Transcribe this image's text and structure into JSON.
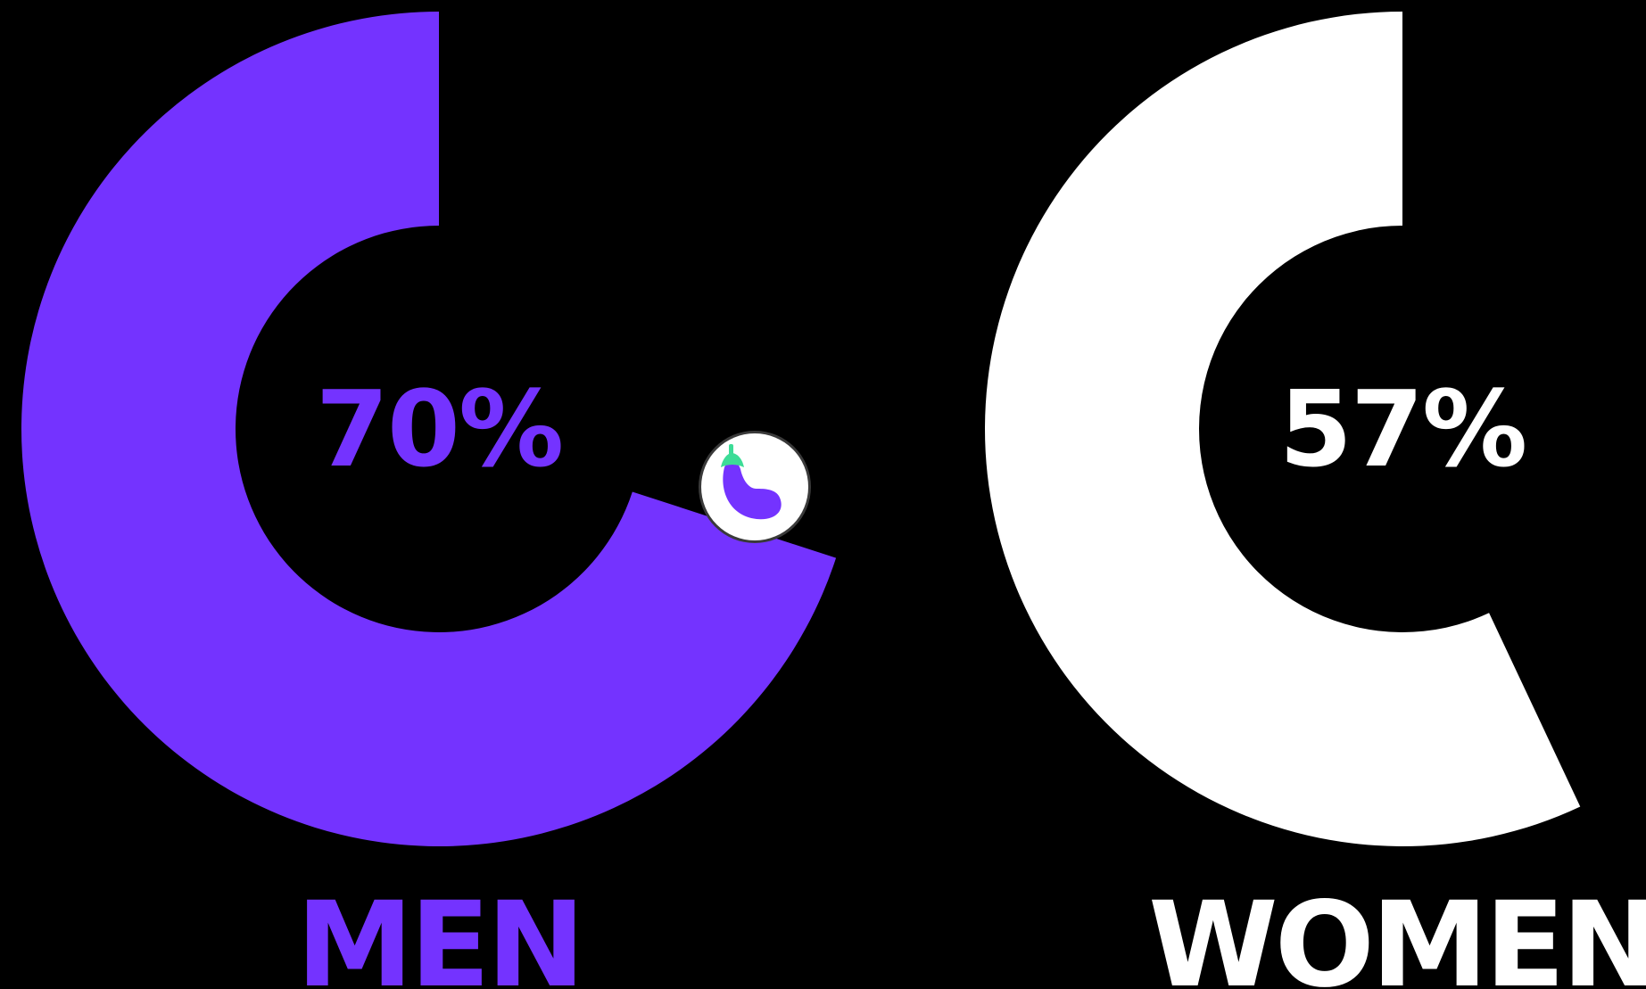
{
  "chart_data": [
    {
      "type": "pie",
      "category": "MEN",
      "value": 70,
      "value_label": "70%",
      "color": "#7433FF",
      "center_text_color": "#7433FF"
    },
    {
      "type": "pie",
      "category": "WOMEN",
      "value": 57,
      "value_label": "57%",
      "color": "#FFFFFF",
      "center_text_color": "#FFFFFF"
    }
  ],
  "badge": {
    "icon": "eggplant-icon",
    "background": "#FFFFFF",
    "icon_color": "#7433FF",
    "leaf_color": "#3DDC97"
  },
  "background": "#000000"
}
